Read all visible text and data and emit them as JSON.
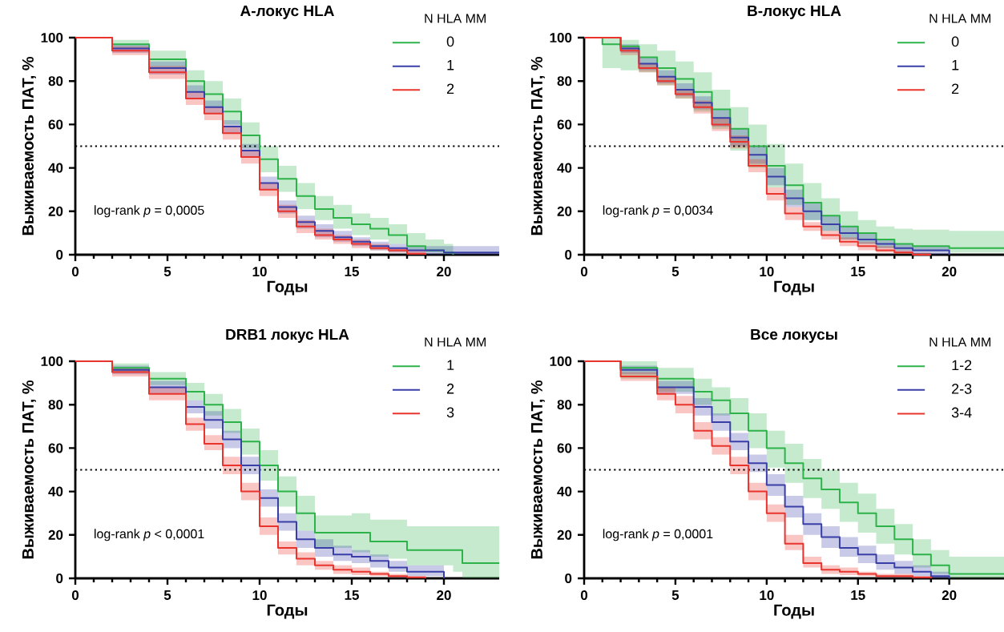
{
  "chart_data": [
    {
      "type": "step",
      "title": "A-локус HLA",
      "xlabel": "Годы",
      "ylabel": "Выживаемость ПАТ, %",
      "legend_title": "N HLA MM",
      "legend": "top right",
      "xlim": [
        0,
        23
      ],
      "ylim": [
        0,
        100
      ],
      "xticks": [
        0,
        5,
        10,
        15,
        20
      ],
      "yticks": [
        0,
        20,
        40,
        60,
        80,
        100
      ],
      "ref_lines": [
        {
          "axis": "y",
          "value": 50,
          "line_style": "dotted",
          "color": "#000000"
        }
      ],
      "annotations": [
        "log-rank *p* = 0,0005"
      ],
      "series": [
        {
          "name": "0",
          "color": "#2db34a",
          "x": [
            0,
            2,
            4,
            6,
            7,
            8,
            9,
            10,
            11,
            12,
            13,
            14,
            15,
            16,
            17,
            18,
            19,
            20,
            20.5
          ],
          "values": [
            100,
            97,
            90,
            80,
            74,
            66,
            55,
            44,
            35,
            27,
            21,
            17,
            14,
            12,
            9,
            4,
            2,
            1,
            0
          ],
          "lower": [
            100,
            95,
            86,
            75,
            68,
            60,
            49,
            38,
            29,
            21,
            16,
            12,
            9,
            7,
            5,
            2,
            1,
            0.5,
            0
          ],
          "upper": [
            100,
            99,
            94,
            85,
            80,
            72,
            61,
            50,
            41,
            33,
            27,
            23,
            19,
            17,
            14,
            10,
            7,
            5,
            5
          ]
        },
        {
          "name": "1",
          "color": "#3a3fa8",
          "x": [
            0,
            2,
            4,
            6,
            7,
            8,
            9,
            10,
            11,
            12,
            13,
            14,
            15,
            16,
            17,
            18,
            20,
            23
          ],
          "values": [
            100,
            95,
            86,
            75,
            68,
            59,
            48,
            33,
            22,
            15,
            11,
            8,
            6,
            4,
            3,
            2,
            1,
            1
          ],
          "lower": [
            100,
            93,
            83,
            72,
            65,
            56,
            45,
            30,
            19,
            12,
            8,
            6,
            4,
            2,
            1,
            0,
            0,
            0
          ],
          "upper": [
            100,
            97,
            89,
            78,
            71,
            62,
            51,
            36,
            25,
            18,
            14,
            11,
            8,
            6,
            5,
            4,
            4,
            4
          ]
        },
        {
          "name": "2",
          "color": "#e8342c",
          "x": [
            0,
            2,
            4,
            6,
            7,
            8,
            9,
            10,
            11,
            12,
            13,
            14,
            15,
            16,
            17,
            18,
            19
          ],
          "values": [
            100,
            94,
            84,
            72,
            65,
            56,
            45,
            30,
            20,
            13,
            9,
            7,
            5,
            3,
            2,
            0.5,
            0
          ],
          "lower": [
            100,
            92,
            81,
            69,
            62,
            53,
            42,
            27,
            17,
            10,
            7,
            5,
            3,
            2,
            1,
            0,
            0
          ],
          "upper": [
            100,
            96,
            87,
            75,
            68,
            59,
            48,
            33,
            23,
            16,
            12,
            9,
            7,
            5,
            3,
            2,
            0
          ]
        }
      ]
    },
    {
      "type": "step",
      "title": "B-локус HLA",
      "xlabel": "Годы",
      "ylabel": "Выживаемость ПАТ, %",
      "legend_title": "N HLA MM",
      "legend": "top right",
      "xlim": [
        0,
        23
      ],
      "ylim": [
        0,
        100
      ],
      "xticks": [
        0,
        5,
        10,
        15,
        20
      ],
      "yticks": [
        0,
        20,
        40,
        60,
        80,
        100
      ],
      "ref_lines": [
        {
          "axis": "y",
          "value": 50,
          "line_style": "dotted",
          "color": "#000000"
        }
      ],
      "annotations": [
        "log-rank *p* = 0,0034"
      ],
      "series": [
        {
          "name": "0",
          "color": "#2db34a",
          "x": [
            0,
            1,
            2,
            3,
            4,
            5,
            6,
            7,
            8,
            9,
            10,
            11,
            12,
            13,
            14,
            15,
            16,
            17,
            18,
            20,
            23
          ],
          "values": [
            100,
            97,
            96,
            91,
            86,
            81,
            75,
            67,
            58,
            50,
            41,
            32,
            24,
            18,
            13,
            10,
            7,
            5,
            4,
            3,
            3
          ],
          "lower": [
            100,
            86,
            85,
            84,
            78,
            72,
            66,
            58,
            48,
            40,
            31,
            23,
            16,
            11,
            7,
            5,
            3,
            2,
            1.5,
            1,
            1
          ],
          "upper": [
            100,
            100,
            99,
            97,
            94,
            89,
            84,
            76,
            68,
            60,
            51,
            42,
            33,
            26,
            20,
            16,
            13,
            12,
            11.5,
            11,
            11
          ]
        },
        {
          "name": "1",
          "color": "#3a3fa8",
          "x": [
            0,
            2,
            3,
            4,
            5,
            6,
            7,
            8,
            9,
            10,
            11,
            12,
            13,
            14,
            15,
            16,
            17,
            18,
            19,
            20
          ],
          "values": [
            100,
            95,
            88,
            82,
            76,
            70,
            63,
            54,
            46,
            36,
            26,
            20,
            14,
            10,
            7,
            5,
            3,
            2,
            2,
            0
          ],
          "lower": [
            100,
            93,
            85,
            79,
            73,
            67,
            59,
            50,
            42,
            32,
            22,
            16,
            11,
            7,
            5,
            3,
            1,
            0,
            0,
            0
          ],
          "upper": [
            100,
            97,
            91,
            85,
            79,
            73,
            67,
            58,
            50,
            40,
            30,
            24,
            18,
            13,
            10,
            7,
            5,
            4,
            4,
            0
          ]
        },
        {
          "name": "2",
          "color": "#e8342c",
          "x": [
            0,
            2,
            3,
            4,
            5,
            6,
            7,
            8,
            9,
            10,
            11,
            12,
            13,
            14,
            15,
            16,
            17,
            18,
            19
          ],
          "values": [
            100,
            94,
            86,
            80,
            74,
            68,
            60,
            52,
            41,
            28,
            19,
            13,
            9,
            6,
            4,
            2,
            1,
            0,
            0
          ],
          "lower": [
            100,
            92,
            84,
            78,
            72,
            65,
            57,
            49,
            38,
            25,
            16,
            11,
            7,
            4,
            2,
            1,
            0.5,
            0.2,
            0
          ],
          "upper": [
            100,
            96,
            88,
            82,
            76,
            71,
            63,
            55,
            44,
            31,
            22,
            15,
            11,
            8,
            6,
            4,
            2,
            1,
            0
          ]
        }
      ]
    },
    {
      "type": "step",
      "title": "DRB1 локус HLA",
      "xlabel": "Годы",
      "ylabel": "Выживаемость ПАТ, %",
      "legend_title": "N HLA MM",
      "legend": "top right",
      "xlim": [
        0,
        23
      ],
      "ylim": [
        0,
        100
      ],
      "xticks": [
        0,
        5,
        10,
        15,
        20
      ],
      "yticks": [
        0,
        20,
        40,
        60,
        80,
        100
      ],
      "ref_lines": [
        {
          "axis": "y",
          "value": 50,
          "line_style": "dotted",
          "color": "#000000"
        }
      ],
      "annotations": [
        "log-rank *p* < 0,0001"
      ],
      "series": [
        {
          "name": "1",
          "color": "#2db34a",
          "x": [
            0,
            2,
            4,
            6,
            7,
            8,
            9,
            10,
            11,
            12,
            13,
            15,
            16,
            17,
            18,
            20.5,
            21,
            23
          ],
          "values": [
            100,
            97,
            92,
            86,
            80,
            72,
            63,
            52,
            40,
            30,
            21,
            21,
            17,
            17,
            13,
            13,
            7,
            7
          ],
          "lower": [
            100,
            95,
            89,
            82,
            75,
            67,
            57,
            45,
            33,
            22,
            14,
            12,
            10,
            9,
            6,
            3,
            0,
            0
          ],
          "upper": [
            100,
            99,
            95,
            90,
            85,
            78,
            69,
            59,
            47,
            38,
            29,
            30,
            27,
            27,
            24,
            24,
            24,
            24
          ]
        },
        {
          "name": "2",
          "color": "#3a3fa8",
          "x": [
            0,
            2,
            4,
            6,
            7,
            8,
            9,
            10,
            11,
            12,
            13,
            14,
            15,
            16,
            17,
            18,
            20
          ],
          "values": [
            100,
            96,
            88,
            79,
            73,
            64,
            52,
            37,
            26,
            18,
            14,
            11,
            10,
            8,
            5,
            3,
            0
          ],
          "lower": [
            100,
            94,
            85,
            76,
            69,
            60,
            48,
            33,
            22,
            14,
            10,
            8,
            7,
            5,
            3,
            1,
            0
          ],
          "upper": [
            100,
            98,
            91,
            82,
            77,
            68,
            56,
            41,
            30,
            22,
            18,
            15,
            13,
            11,
            8,
            6,
            0
          ]
        },
        {
          "name": "3",
          "color": "#e8342c",
          "x": [
            0,
            2,
            4,
            6,
            7,
            8,
            9,
            10,
            11,
            12,
            13,
            14,
            15,
            16,
            17,
            18,
            19
          ],
          "values": [
            100,
            95,
            85,
            71,
            62,
            52,
            40,
            24,
            14,
            9,
            6,
            4,
            3,
            2,
            1,
            0.5,
            0
          ],
          "lower": [
            100,
            93,
            82,
            68,
            59,
            48,
            36,
            20,
            11,
            6,
            4,
            2,
            1.5,
            1,
            0.5,
            0.2,
            0
          ],
          "upper": [
            100,
            97,
            88,
            74,
            66,
            56,
            44,
            28,
            17,
            12,
            8,
            6,
            5,
            3,
            2,
            1,
            0
          ]
        }
      ]
    },
    {
      "type": "step",
      "title": "Все локусы",
      "xlabel": "Годы",
      "ylabel": "Выживаемость ПАТ, %",
      "legend_title": "N HLA MM",
      "legend": "top right",
      "xlim": [
        0,
        23
      ],
      "ylim": [
        0,
        100
      ],
      "xticks": [
        0,
        5,
        10,
        15,
        20
      ],
      "yticks": [
        0,
        20,
        40,
        60,
        80,
        100
      ],
      "ref_lines": [
        {
          "axis": "y",
          "value": 50,
          "line_style": "dotted",
          "color": "#000000"
        }
      ],
      "annotations": [
        "log-rank *p* = 0,0001"
      ],
      "series": [
        {
          "name": "1-2",
          "color": "#2db34a",
          "x": [
            0,
            2,
            4,
            6,
            7,
            8,
            9,
            10,
            11,
            12,
            13,
            14,
            15,
            16,
            17,
            18,
            19,
            20,
            23
          ],
          "values": [
            100,
            97,
            92,
            86,
            82,
            76,
            68,
            60,
            53,
            46,
            41,
            35,
            30,
            24,
            18,
            11,
            6,
            2,
            2
          ],
          "lower": [
            100,
            92,
            86,
            80,
            75,
            68,
            60,
            51,
            44,
            37,
            32,
            26,
            21,
            16,
            11,
            5,
            2,
            0,
            0
          ],
          "upper": [
            100,
            100,
            97,
            92,
            88,
            83,
            76,
            68,
            62,
            55,
            50,
            44,
            39,
            32,
            25,
            18,
            13,
            10,
            10
          ]
        },
        {
          "name": "2-3",
          "color": "#3a3fa8",
          "x": [
            0,
            2,
            4,
            6,
            7,
            8,
            9,
            10,
            11,
            12,
            13,
            14,
            15,
            16,
            17,
            18,
            19,
            20
          ],
          "values": [
            100,
            96,
            88,
            79,
            72,
            63,
            53,
            43,
            33,
            25,
            19,
            14,
            11,
            7,
            5,
            3,
            1,
            0
          ],
          "lower": [
            100,
            94,
            85,
            75,
            68,
            59,
            49,
            38,
            28,
            20,
            14,
            10,
            7,
            4,
            2,
            1,
            0,
            0
          ],
          "upper": [
            100,
            98,
            91,
            83,
            76,
            67,
            57,
            48,
            38,
            30,
            24,
            19,
            15,
            11,
            8,
            6,
            3,
            0
          ]
        },
        {
          "name": "3-4",
          "color": "#e8342c",
          "x": [
            0,
            2,
            4,
            5,
            6,
            7,
            8,
            9,
            10,
            11,
            12,
            13,
            14,
            15,
            16,
            18,
            19
          ],
          "values": [
            100,
            93,
            85,
            80,
            68,
            61,
            52,
            40,
            30,
            16,
            7,
            4,
            3,
            2,
            1,
            0.5,
            0
          ],
          "lower": [
            100,
            91,
            82,
            76,
            64,
            57,
            48,
            36,
            26,
            13,
            5,
            2,
            1.5,
            1,
            0.5,
            0.2,
            0
          ],
          "upper": [
            100,
            95,
            88,
            84,
            72,
            65,
            56,
            44,
            34,
            20,
            10,
            6,
            5,
            3,
            2,
            1,
            0
          ]
        }
      ]
    }
  ]
}
